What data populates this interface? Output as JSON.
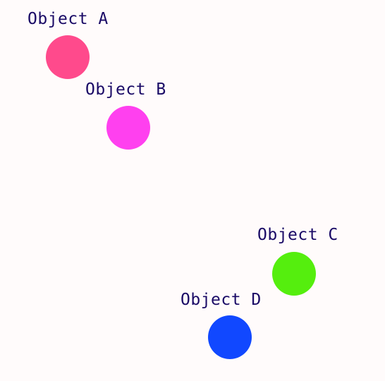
{
  "objects": [
    {
      "label": "Object A",
      "color": "#ff4a8c"
    },
    {
      "label": "Object B",
      "color": "#ff40ef"
    },
    {
      "label": "Object C",
      "color": "#55ee0e"
    },
    {
      "label": "Object D",
      "color": "#1148ff"
    }
  ]
}
